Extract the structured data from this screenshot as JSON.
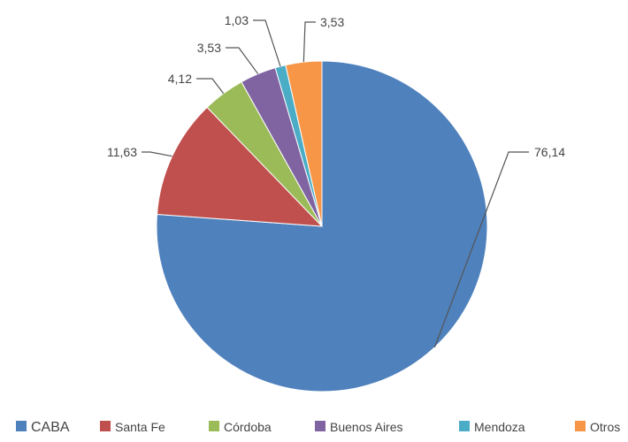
{
  "chart_data": {
    "type": "pie",
    "categories": [
      "CABA",
      "Santa Fe",
      "Córdoba",
      "Buenos Aires",
      "Mendoza",
      "Otros"
    ],
    "values": [
      76.14,
      11.63,
      4.12,
      3.53,
      1.03,
      3.53
    ],
    "value_labels": [
      "76,14",
      "11,63",
      "4,12",
      "3,53",
      "1,03",
      "3,53"
    ],
    "colors": [
      "#4f81bd",
      "#c0504d",
      "#9bbb59",
      "#8064a2",
      "#4bacc6",
      "#f79646"
    ],
    "start_angle": "12 o'clock",
    "direction": "clockwise",
    "legend_position": "bottom"
  }
}
